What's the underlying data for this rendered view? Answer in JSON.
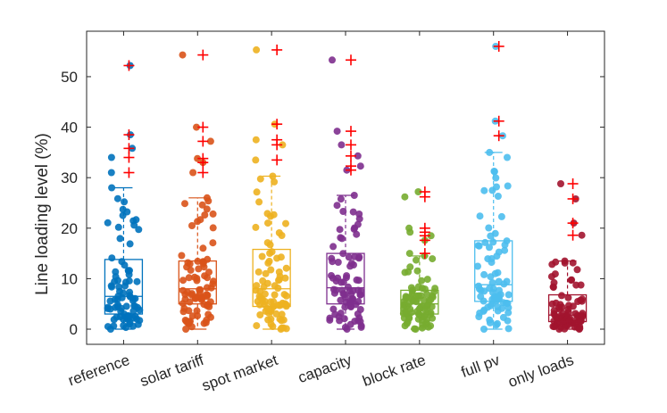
{
  "chart_data": {
    "type": "box",
    "ylabel": "Line loading level (%)",
    "ylim": [
      -3,
      59
    ],
    "yticks": [
      "0",
      "10",
      "20",
      "30",
      "40",
      "50"
    ],
    "grid": false,
    "categories": [
      "reference",
      "solar tariff",
      "spot market",
      "capacity",
      "block rate",
      "full pv",
      "only loads"
    ],
    "series": [
      {
        "category": "reference",
        "color": "#0072bd",
        "q1": 3.0,
        "median": 6.5,
        "q3": 13.8,
        "whisker_low": 0.0,
        "whisker_high": 28.0,
        "outliers": [
          31.0,
          34.0,
          35.8,
          38.5,
          52.2
        ]
      },
      {
        "category": "solar tariff",
        "color": "#d95319",
        "q1": 5.0,
        "median": 8.0,
        "q3": 13.5,
        "whisker_low": 0.0,
        "whisker_high": 26.0,
        "outliers": [
          31.0,
          33.0,
          33.8,
          37.2,
          40.0,
          54.3
        ]
      },
      {
        "category": "spot market",
        "color": "#edb120",
        "q1": 4.5,
        "median": 8.0,
        "q3": 15.8,
        "whisker_low": 0.0,
        "whisker_high": 30.3,
        "outliers": [
          33.5,
          36.5,
          37.5,
          40.6,
          55.3
        ]
      },
      {
        "category": "capacity",
        "color": "#7e2f8e",
        "q1": 5.0,
        "median": 8.2,
        "q3": 15.0,
        "whisker_low": 0.0,
        "whisker_high": 26.5,
        "outliers": [
          31.5,
          32.3,
          34.3,
          36.5,
          39.2,
          53.3
        ]
      },
      {
        "category": "block rate",
        "color": "#77ac30",
        "q1": 3.0,
        "median": 5.0,
        "q3": 7.7,
        "whisker_low": 0.0,
        "whisker_high": 14.5,
        "outliers": [
          15.0,
          17.6,
          18.5,
          19.2,
          20.0,
          26.2,
          27.2
        ]
      },
      {
        "category": "full pv",
        "color": "#4dbeee",
        "q1": 5.5,
        "median": 8.8,
        "q3": 17.5,
        "whisker_low": 0.0,
        "whisker_high": 35.0,
        "outliers": [
          38.3,
          41.2,
          56.0
        ]
      },
      {
        "category": "only loads",
        "color": "#a2142f",
        "q1": 1.5,
        "median": 2.8,
        "q3": 6.8,
        "whisker_low": 0.0,
        "whisker_high": 13.5,
        "outliers": [
          18.6,
          21.0,
          25.8,
          28.8
        ]
      }
    ]
  }
}
